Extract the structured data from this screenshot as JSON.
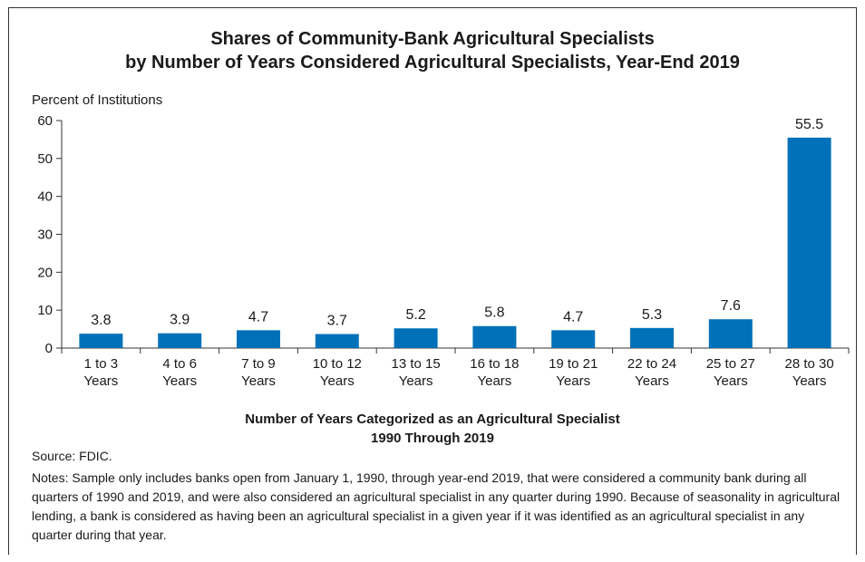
{
  "title_line1": "Shares of Community-Bank Agricultural Specialists",
  "title_line2": "by Number of Years Considered Agricultural Specialists, Year-End 2019",
  "source": "Source: FDIC.",
  "notes": "Notes: Sample only includes banks open from January 1, 1990, through year-end 2019, that were considered a community bank during all quarters of 1990 and 2019, and were also considered an agricultural specialist in any quarter during 1990. Because of seasonality in agricultural lending, a bank is considered as having been an agricultural specialist in a given year if it was identified as an agricultural specialist in any quarter during that year.",
  "chart_data": {
    "type": "bar",
    "title": "Shares of Community-Bank Agricultural Specialists by Number of Years Considered Agricultural Specialists, Year-End 2019",
    "ylabel": "Percent of Institutions",
    "xlabel_line1": "Number of Years Categorized as an Agricultural Specialist",
    "xlabel_line2": "1990 Through 2019",
    "ylim": [
      0,
      60
    ],
    "yticks": [
      0,
      10,
      20,
      30,
      40,
      50,
      60
    ],
    "categories": [
      [
        "1 to 3",
        "Years"
      ],
      [
        "4 to 6",
        "Years"
      ],
      [
        "7 to 9",
        "Years"
      ],
      [
        "10 to 12",
        "Years"
      ],
      [
        "13 to 15",
        "Years"
      ],
      [
        "16 to 18",
        "Years"
      ],
      [
        "19 to 21",
        "Years"
      ],
      [
        "22 to 24",
        "Years"
      ],
      [
        "25 to 27",
        "Years"
      ],
      [
        "28 to 30",
        "Years"
      ]
    ],
    "values": [
      3.8,
      3.9,
      4.7,
      3.7,
      5.2,
      5.8,
      4.7,
      5.3,
      7.6,
      55.5
    ],
    "data_labels": [
      "3.8",
      "3.9",
      "4.7",
      "3.7",
      "5.2",
      "5.8",
      "4.7",
      "5.3",
      "7.6",
      "55.5"
    ],
    "bar_color": "#0071b9",
    "grid": false,
    "legend": "none"
  }
}
